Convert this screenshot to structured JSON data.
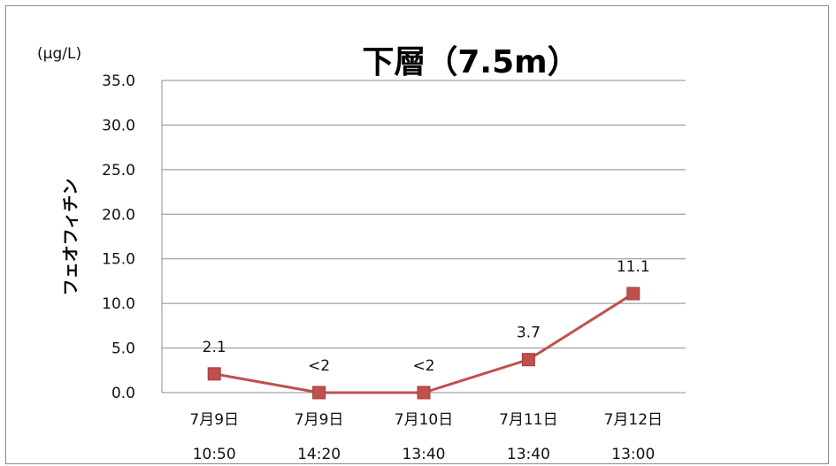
{
  "chart_data": {
    "type": "line",
    "title": "下層（7.5m）",
    "unit": "(μg/L)",
    "ylabel": "フェオフィチン",
    "xlabel": "",
    "ylim": [
      0,
      35
    ],
    "yticks": [
      "0.0",
      "5.0",
      "10.0",
      "15.0",
      "20.0",
      "25.0",
      "30.0",
      "35.0"
    ],
    "categories": [
      [
        "7月9日",
        "10:50"
      ],
      [
        "7月9日",
        "14:20"
      ],
      [
        "7月10日",
        "13:40"
      ],
      [
        "7月11日",
        "13:40"
      ],
      [
        "7月12日",
        "13:00"
      ]
    ],
    "series": [
      {
        "values": [
          2.1,
          0,
          0,
          3.7,
          11.1
        ],
        "labels": [
          "2.1",
          "<2",
          "<2",
          "3.7",
          "11.1"
        ],
        "color": "#c0504d"
      }
    ],
    "grid": true,
    "legend": "none"
  }
}
